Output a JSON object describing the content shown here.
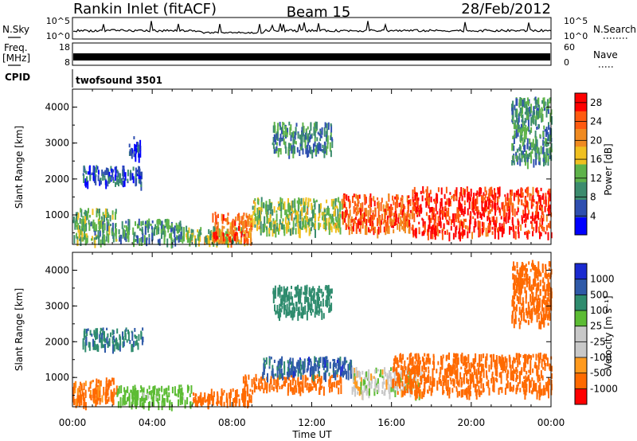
{
  "header": {
    "station": "Rankin Inlet (fitACF)",
    "beam": "Beam 15",
    "date": "28/Feb/2012"
  },
  "panels": {
    "nsky": {
      "left_label": "N.Sky",
      "left_ticks": [
        "10^5",
        "10^0"
      ],
      "right_label": "N.Search",
      "right_ticks": [
        "10^5",
        "10^0"
      ]
    },
    "freq": {
      "left_label_1": "Freq.",
      "left_label_2": "[MHz]",
      "left_ticks": [
        "18",
        "8"
      ],
      "right_label": "Nave",
      "right_ticks": [
        "60",
        "0"
      ]
    },
    "cpid": {
      "label": "CPID",
      "program": "twofsound 3501"
    }
  },
  "colors": {
    "power_scale": [
      "#0000ff",
      "#2f4fb0",
      "#3c8c6e",
      "#5fb34a",
      "#f0c020",
      "#f08a20",
      "#ff5a10",
      "#ff0000"
    ],
    "velocity_scale": [
      "#ff0000",
      "#ff6a00",
      "#ff9a1e",
      "#c8c8c8",
      "#c8c8c8",
      "#5cbc34",
      "#2f8c6e",
      "#2f5aa8",
      "#1a2ad0"
    ]
  },
  "chart_data": [
    {
      "type": "heatmap",
      "name": "power",
      "ylabel": "Slant Range [km]",
      "xlabel": "Time UT",
      "x_ticks": [
        "00:00",
        "04:00",
        "08:00",
        "12:00",
        "16:00",
        "20:00",
        "00:00"
      ],
      "y_ticks": [
        "1000",
        "2000",
        "3000",
        "4000"
      ],
      "xlim_hours": [
        0,
        24
      ],
      "ylim_km": [
        180,
        4500
      ],
      "colorbar_label": "Power [dB]",
      "colorbar_ticks": [
        "4",
        "8",
        "12",
        "16",
        "20",
        "24",
        "28"
      ],
      "colorbar_range": [
        0,
        30
      ],
      "regions": [
        {
          "t0": 0.0,
          "t1": 2.2,
          "r0": 300,
          "r1": 1200,
          "v": 12
        },
        {
          "t0": 0.5,
          "t1": 3.5,
          "r0": 1900,
          "r1": 2400,
          "v": 6
        },
        {
          "t0": 2.2,
          "t1": 5.5,
          "r0": 300,
          "r1": 900,
          "v": 10
        },
        {
          "t0": 5.5,
          "t1": 8.5,
          "r0": 300,
          "r1": 700,
          "v": 14
        },
        {
          "t0": 7.0,
          "t1": 9.0,
          "r0": 300,
          "r1": 1100,
          "v": 22
        },
        {
          "t0": 9.0,
          "t1": 13.5,
          "r0": 600,
          "r1": 1500,
          "v": 14
        },
        {
          "t0": 13.5,
          "t1": 17.0,
          "r0": 600,
          "r1": 1600,
          "v": 24
        },
        {
          "t0": 17.0,
          "t1": 24.0,
          "r0": 500,
          "r1": 1800,
          "v": 27
        },
        {
          "t0": 2.8,
          "t1": 3.4,
          "r0": 2700,
          "r1": 3200,
          "v": 5
        },
        {
          "t0": 10.0,
          "t1": 13.0,
          "r0": 2800,
          "r1": 3600,
          "v": 9
        },
        {
          "t0": 22.0,
          "t1": 24.0,
          "r0": 2500,
          "r1": 4300,
          "v": 10
        }
      ]
    },
    {
      "type": "heatmap",
      "name": "velocity",
      "ylabel": "Slant Range [km]",
      "xlabel": "Time UT",
      "x_ticks": [
        "00:00",
        "04:00",
        "08:00",
        "12:00",
        "16:00",
        "20:00",
        "00:00"
      ],
      "y_ticks": [
        "1000",
        "2000",
        "3000",
        "4000"
      ],
      "xlim_hours": [
        0,
        24
      ],
      "ylim_km": [
        180,
        4500
      ],
      "colorbar_label": "Velocity [m s⁻¹]",
      "colorbar_ticks": [
        "1000",
        "500",
        "100",
        "25",
        "-25",
        "-100",
        "-500",
        "-1000"
      ],
      "regions": [
        {
          "t0": 0.0,
          "t1": 2.2,
          "r0": 300,
          "r1": 1000,
          "v": -150
        },
        {
          "t0": 0.5,
          "t1": 3.5,
          "r0": 1900,
          "r1": 2400,
          "v": 400
        },
        {
          "t0": 2.2,
          "t1": 6.0,
          "r0": 300,
          "r1": 800,
          "v": 60
        },
        {
          "t0": 6.0,
          "t1": 9.0,
          "r0": 300,
          "r1": 700,
          "v": -300
        },
        {
          "t0": 8.5,
          "t1": 13.5,
          "r0": 700,
          "r1": 1100,
          "v": -250
        },
        {
          "t0": 9.5,
          "t1": 14.0,
          "r0": 1100,
          "r1": 1600,
          "v": 700
        },
        {
          "t0": 14.0,
          "t1": 17.5,
          "r0": 600,
          "r1": 1300,
          "v": 0
        },
        {
          "t0": 16.0,
          "t1": 24.0,
          "r0": 600,
          "r1": 1700,
          "v": -200
        },
        {
          "t0": 10.0,
          "t1": 13.0,
          "r0": 2800,
          "r1": 3600,
          "v": 300
        },
        {
          "t0": 22.0,
          "t1": 24.0,
          "r0": 2500,
          "r1": 4300,
          "v": -200
        }
      ]
    }
  ]
}
